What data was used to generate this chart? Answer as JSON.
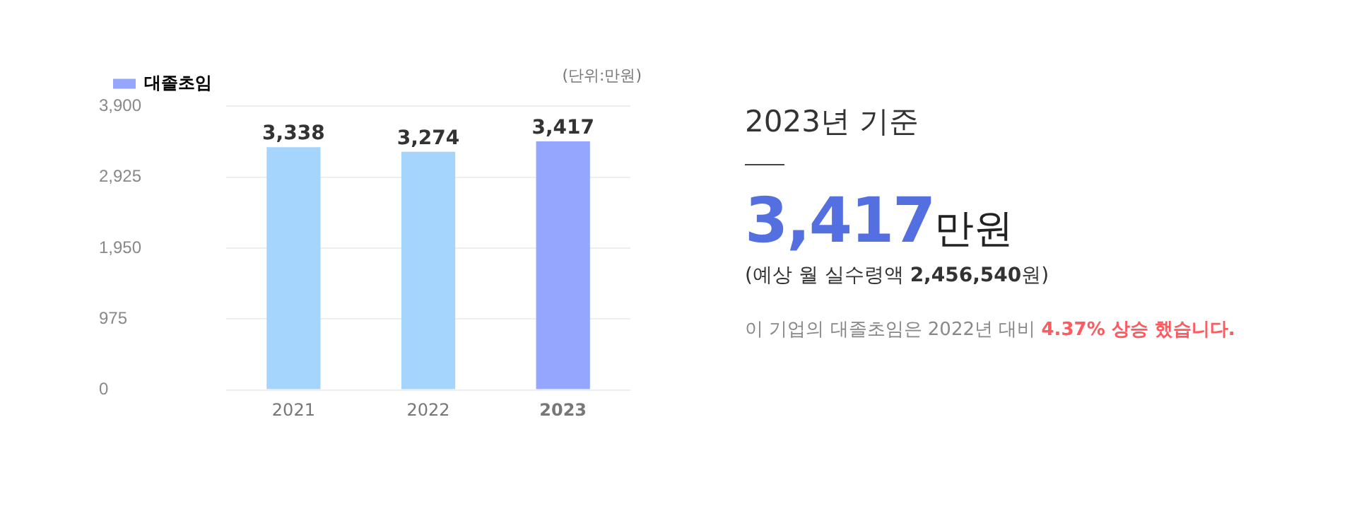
{
  "chart_data": [
    {
      "type": "bar",
      "categories": [
        "2021",
        "2022",
        "2023"
      ],
      "series": [
        {
          "name": "대졸초임",
          "color": "#94a6fe",
          "colors": [
            "#a5d5fd",
            "#a5d5fd",
            "#94a6fe"
          ],
          "values": [
            3338,
            3274,
            3417
          ]
        }
      ],
      "ylabel": "(단위:만원)",
      "ylim": [
        0,
        3900
      ],
      "yticks": [
        {
          "value": 0,
          "label": "0"
        },
        {
          "value": 975,
          "label": "975"
        },
        {
          "value": 1950,
          "label": "1,950"
        },
        {
          "value": 2925,
          "label": "2,925"
        },
        {
          "value": 3900,
          "label": "3,900"
        }
      ],
      "value_labels": [
        "3,338",
        "3,274",
        "3,417"
      ],
      "grid": "y",
      "legend": "top left"
    },
    {
      "type": "other",
      "title": "2023년 기준",
      "annotations": [
        "3,417",
        "만원",
        "(예상 월 실수령액 ",
        "2,456,540",
        "원)",
        "이 기업의 대졸초임은 2022년 대비 ",
        "4.37% 상승 했습니다."
      ]
    }
  ]
}
